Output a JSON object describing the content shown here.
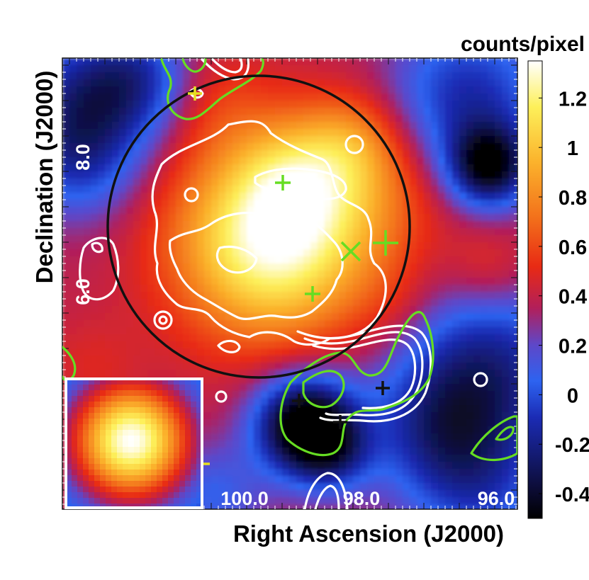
{
  "chart_data": {
    "type": "heatmap",
    "title": "",
    "xlabel": "Right Ascension (J2000)",
    "ylabel": "Declination (J2000)",
    "x_ticks": [
      "100.0",
      "98.0",
      "96.0"
    ],
    "y_ticks": [
      "8.0",
      "6.0"
    ],
    "colorbar": {
      "label": "counts/pixel",
      "ticks": [
        1.2,
        1,
        0.8,
        0.6,
        0.4,
        0.2,
        0,
        -0.2,
        -0.4
      ],
      "range": [
        -0.5,
        1.35
      ]
    },
    "colormap_stops": [
      "#000000",
      "#0d0d3a",
      "#1b2bb4",
      "#2d63f0",
      "#5e47c8",
      "#b21f5a",
      "#e82a14",
      "#f3721b",
      "#fbb32c",
      "#fdf05a",
      "#ffffff"
    ],
    "colors": {
      "circle": "#111111",
      "contour_white": "#ffffff",
      "contour_green": "#66dd22",
      "marker_green": "#66dd22",
      "marker_yellow": "#e8e020",
      "marker_black": "#111111",
      "inset_border": "#ffffff"
    },
    "inset": "point spread function image"
  }
}
